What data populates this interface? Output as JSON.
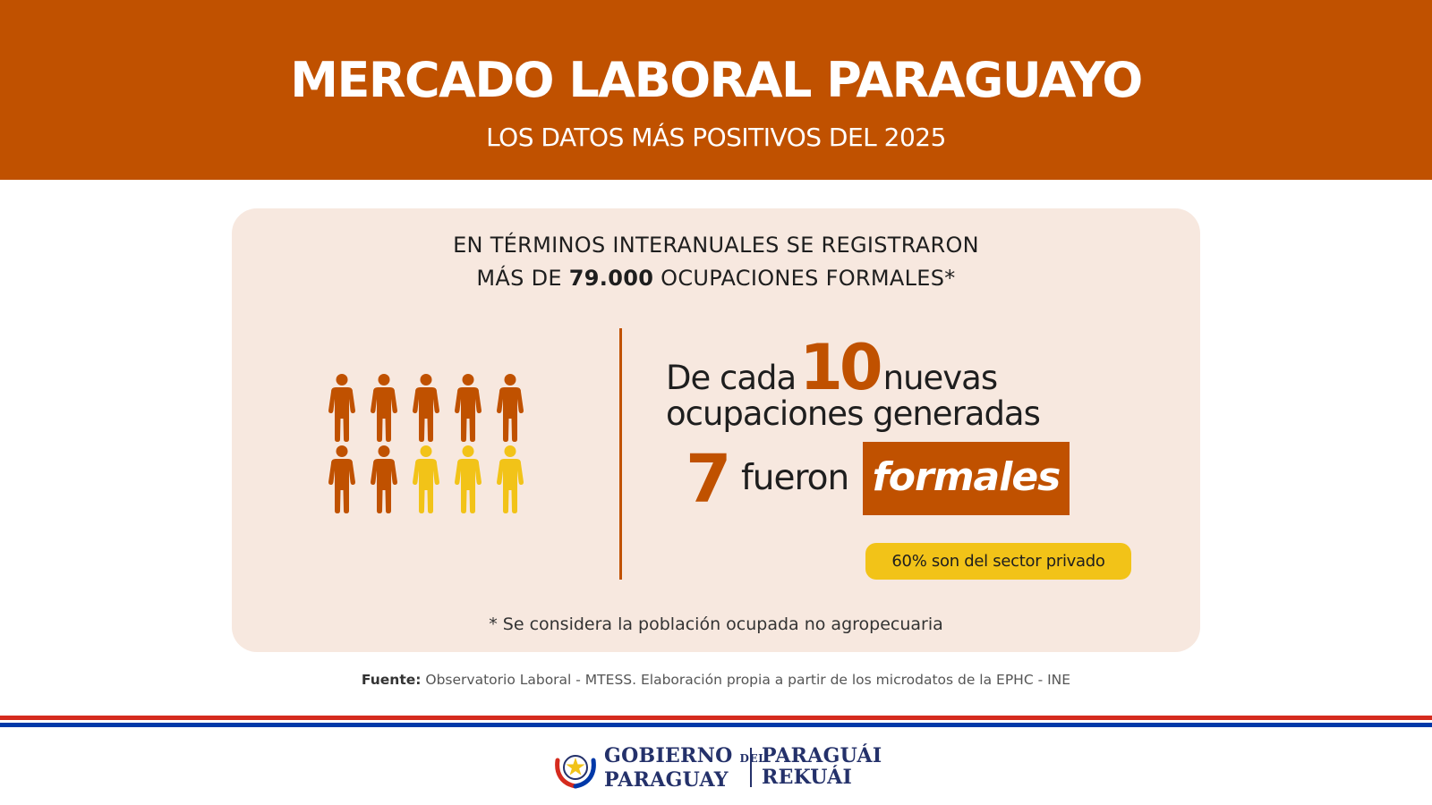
{
  "header": {
    "title": "MERCADO LABORAL PARAGUAYO",
    "subtitle": "LOS DATOS MÁS POSITIVOS DEL 2025",
    "background": "#c05100"
  },
  "intro": {
    "line1": "EN TÉRMINOS INTERANUALES SE REGISTRARON",
    "line2_pre": "MÁS DE ",
    "line2_number": "79.000",
    "line2_post": " OCUPACIONES FORMALES*"
  },
  "pictogram": {
    "total": 10,
    "highlighted": 7,
    "highlight_color": "#c05100",
    "rest_color": "#f2c318",
    "icon": "person-icon"
  },
  "stat": {
    "pre": "De cada",
    "ten": "10",
    "post": "nuevas",
    "line2": "ocupaciones generadas",
    "seven": "7",
    "fueron": "fueron",
    "formales": "formales"
  },
  "pill": {
    "text": "60% son del sector privado",
    "color": "#f2c318"
  },
  "footnote": "* Se considera la población ocupada no agropecuaria",
  "source": {
    "label": "Fuente:",
    "text": " Observatorio Laboral - MTESS. Elaboración propia a partir de los microdatos de la EPHC - INE"
  },
  "flag_colors": {
    "red": "#d52b1e",
    "white": "#ffffff",
    "blue": "#0038a8"
  },
  "logo": {
    "gov_line1": "GOBIERNO",
    "gov_del": "DEL",
    "gov_line2": "PARAGUAY",
    "slogan_line1": "PARAGUÁI",
    "slogan_line2": "REKUÁI",
    "emblem": "seal-icon"
  }
}
